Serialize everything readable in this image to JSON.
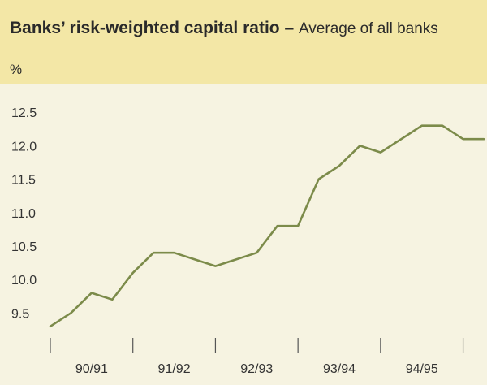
{
  "header": {
    "title": "Banks’ risk-weighted capital ratio –",
    "subtitle": "Average of all banks",
    "unit": "%"
  },
  "colors": {
    "line": "#7c8b4a",
    "header_background": "#f3e7a6",
    "plot_background": "#f6f3e1"
  },
  "chart_data": {
    "type": "line",
    "title": "Banks’ risk-weighted capital ratio",
    "subtitle": "Average of all banks",
    "ylabel": "%",
    "ylim": [
      9.2,
      12.6
    ],
    "yticks": [
      9.5,
      10.0,
      10.5,
      11.0,
      11.5,
      12.0,
      12.5
    ],
    "ytick_labels": [
      "9.5",
      "10.0",
      "10.5",
      "11.0",
      "11.5",
      "12.0",
      "12.5"
    ],
    "xlim": [
      0,
      21
    ],
    "year_labels": [
      "90/91",
      "91/92",
      "92/93",
      "93/94",
      "94/95"
    ],
    "year_boundaries": [
      0,
      4,
      8,
      12,
      16,
      20
    ],
    "grid": false,
    "series": [
      {
        "x": [
          0,
          1,
          2,
          3,
          4,
          5,
          6,
          7,
          8,
          9,
          10,
          11,
          12,
          13,
          14,
          15,
          16,
          17,
          18,
          19,
          20,
          21
        ],
        "values": [
          9.3,
          9.5,
          9.8,
          9.7,
          10.1,
          10.4,
          10.4,
          10.3,
          10.2,
          10.3,
          10.4,
          10.8,
          10.8,
          11.5,
          11.7,
          12.0,
          11.9,
          12.1,
          12.3,
          12.3,
          12.1,
          12.1
        ]
      }
    ]
  }
}
